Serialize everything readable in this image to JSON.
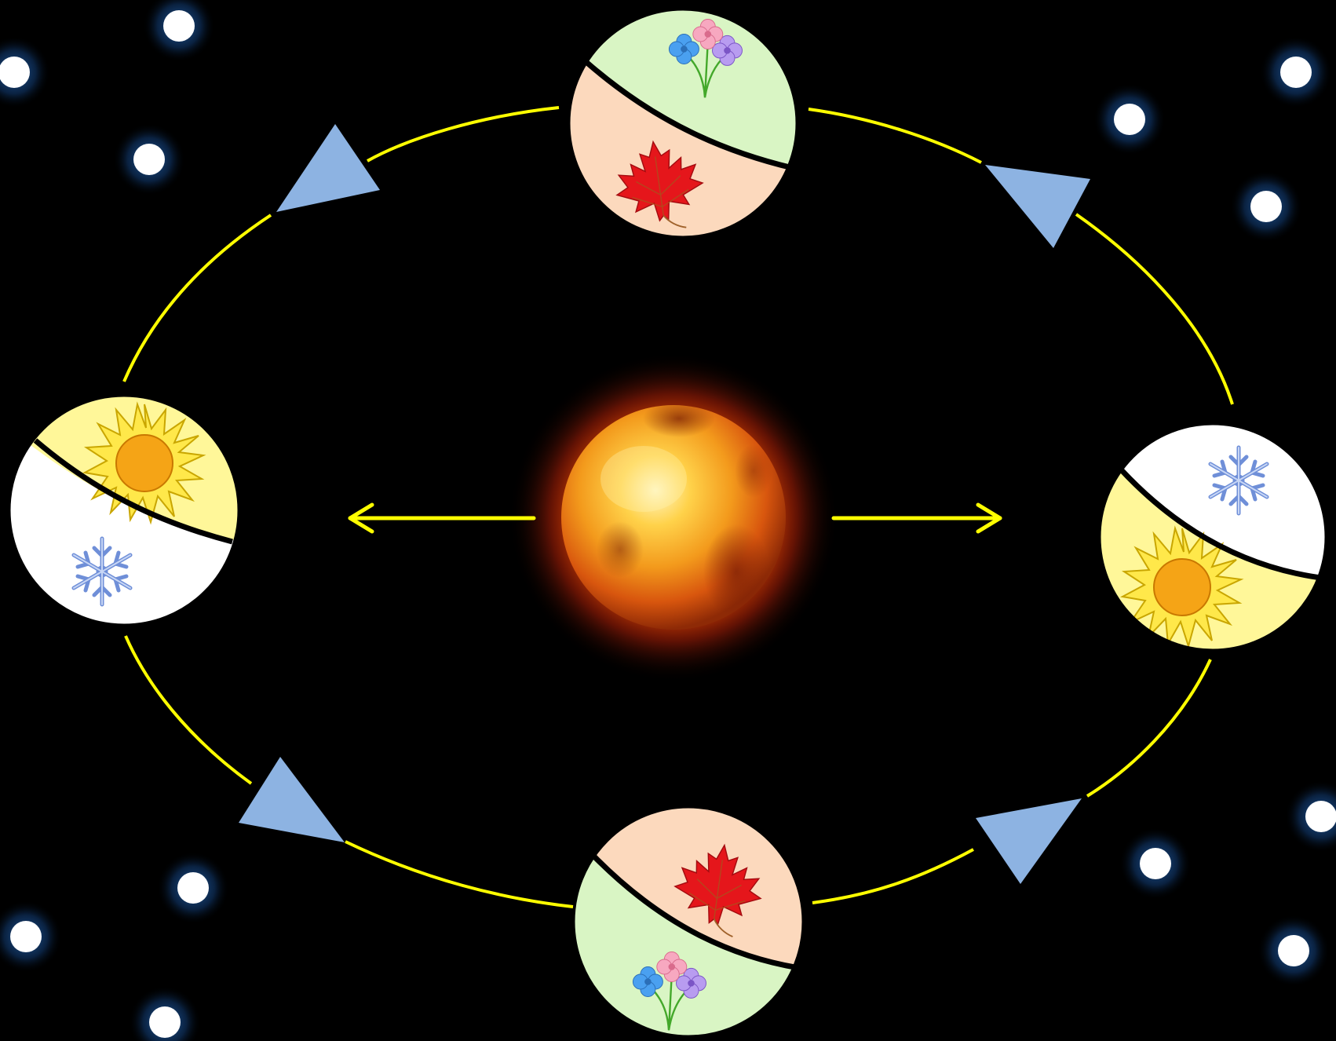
{
  "colors": {
    "background": "#000000",
    "orbit": "#ffff00",
    "direction_arrow": "#8db3e2",
    "star": "#ffffff",
    "star_glow": "#1e5fa8",
    "summer_half": "#fff799",
    "winter_half": "#ffffff",
    "spring_half": "#d9f5c4",
    "autumn_half": "#fcd9bd",
    "divider": "#000000",
    "sun_core": "#ffb347",
    "sun_edge": "#e0420a"
  },
  "earth_positions": [
    {
      "name": "top",
      "upper_half": "spring",
      "lower_half": "autumn",
      "upper_icon": "flowers-icon",
      "lower_icon": "maple-leaf-icon"
    },
    {
      "name": "left",
      "upper_half": "summer",
      "lower_half": "winter",
      "upper_icon": "sun-icon",
      "lower_icon": "snowflake-icon"
    },
    {
      "name": "right",
      "upper_half": "winter",
      "lower_half": "summer",
      "upper_icon": "snowflake-icon",
      "lower_icon": "sun-icon"
    },
    {
      "name": "bottom",
      "upper_half": "autumn",
      "lower_half": "spring",
      "upper_icon": "maple-leaf-icon",
      "lower_icon": "flowers-icon"
    }
  ],
  "orbit_direction": "clockwise",
  "center_body": "sun-icon"
}
